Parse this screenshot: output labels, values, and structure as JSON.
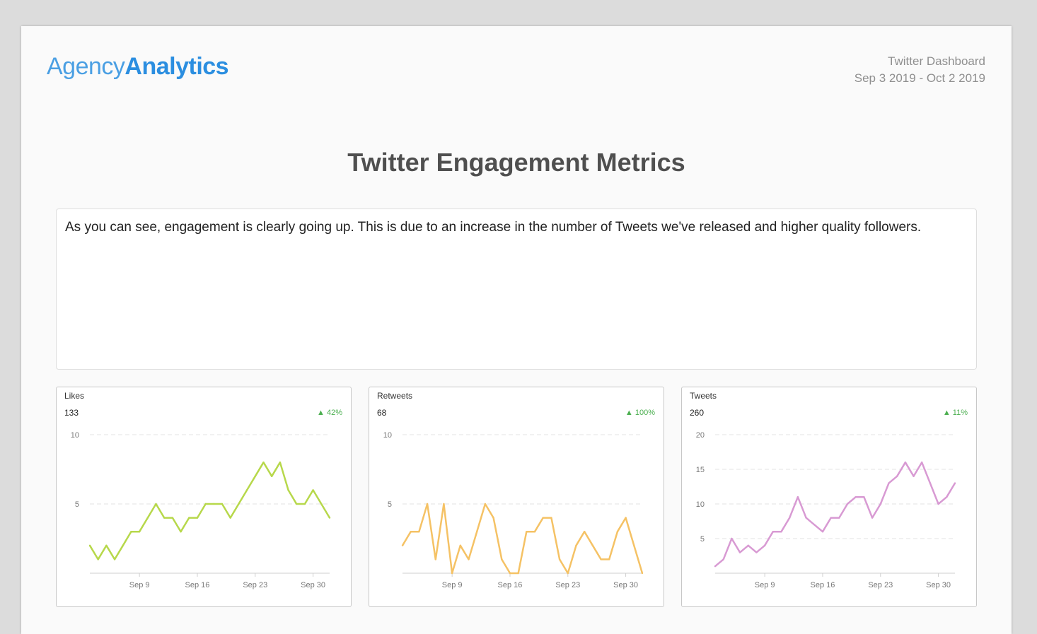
{
  "header": {
    "logo_part1": "Agency",
    "logo_part2": "Analytics",
    "dashboard_title": "Twitter Dashboard",
    "date_range": "Sep 3 2019 - Oct 2 2019"
  },
  "page_title": "Twitter Engagement Metrics",
  "notes_text": "As you can see, engagement is clearly going up. This is due to an increase in the number of Tweets we've released and higher quality followers.",
  "colors": {
    "likes": "#b7d84b",
    "retweets": "#f5c265",
    "tweets": "#d89ad3",
    "positive": "#4caf50"
  },
  "chart_data": [
    {
      "type": "line",
      "title": "Likes",
      "total": "133",
      "change": "42%",
      "change_icon": "triangle-up-icon",
      "x": [
        "Sep 3",
        "Sep 4",
        "Sep 5",
        "Sep 6",
        "Sep 7",
        "Sep 8",
        "Sep 9",
        "Sep 10",
        "Sep 11",
        "Sep 12",
        "Sep 13",
        "Sep 14",
        "Sep 15",
        "Sep 16",
        "Sep 17",
        "Sep 18",
        "Sep 19",
        "Sep 20",
        "Sep 21",
        "Sep 22",
        "Sep 23",
        "Sep 24",
        "Sep 25",
        "Sep 26",
        "Sep 27",
        "Sep 28",
        "Sep 29",
        "Sep 30",
        "Oct 1",
        "Oct 2"
      ],
      "x_ticks": [
        "Sep 9",
        "Sep 16",
        "Sep 23",
        "Sep 30"
      ],
      "values": [
        2,
        1,
        2,
        1,
        2,
        3,
        3,
        4,
        5,
        4,
        4,
        3,
        4,
        4,
        5,
        5,
        5,
        4,
        5,
        6,
        7,
        8,
        7,
        8,
        6,
        5,
        5,
        6,
        5,
        4
      ],
      "y_ticks": [
        5,
        10
      ],
      "ylim": [
        0,
        10
      ],
      "grid": true
    },
    {
      "type": "line",
      "title": "Retweets",
      "total": "68",
      "change": "100%",
      "change_icon": "triangle-up-icon",
      "x": [
        "Sep 3",
        "Sep 4",
        "Sep 5",
        "Sep 6",
        "Sep 7",
        "Sep 8",
        "Sep 9",
        "Sep 10",
        "Sep 11",
        "Sep 12",
        "Sep 13",
        "Sep 14",
        "Sep 15",
        "Sep 16",
        "Sep 17",
        "Sep 18",
        "Sep 19",
        "Sep 20",
        "Sep 21",
        "Sep 22",
        "Sep 23",
        "Sep 24",
        "Sep 25",
        "Sep 26",
        "Sep 27",
        "Sep 28",
        "Sep 29",
        "Sep 30",
        "Oct 1",
        "Oct 2"
      ],
      "x_ticks": [
        "Sep 9",
        "Sep 16",
        "Sep 23",
        "Sep 30"
      ],
      "values": [
        2,
        3,
        3,
        5,
        1,
        5,
        0,
        2,
        1,
        3,
        5,
        4,
        1,
        0,
        0,
        3,
        3,
        4,
        4,
        1,
        0,
        2,
        3,
        2,
        1,
        1,
        3,
        4,
        2,
        0
      ],
      "y_ticks": [
        5,
        10
      ],
      "ylim": [
        0,
        10
      ],
      "grid": true
    },
    {
      "type": "line",
      "title": "Tweets",
      "total": "260",
      "change": "11%",
      "change_icon": "triangle-up-icon",
      "x": [
        "Sep 3",
        "Sep 4",
        "Sep 5",
        "Sep 6",
        "Sep 7",
        "Sep 8",
        "Sep 9",
        "Sep 10",
        "Sep 11",
        "Sep 12",
        "Sep 13",
        "Sep 14",
        "Sep 15",
        "Sep 16",
        "Sep 17",
        "Sep 18",
        "Sep 19",
        "Sep 20",
        "Sep 21",
        "Sep 22",
        "Sep 23",
        "Sep 24",
        "Sep 25",
        "Sep 26",
        "Sep 27",
        "Sep 28",
        "Sep 29",
        "Sep 30",
        "Oct 1",
        "Oct 2"
      ],
      "x_ticks": [
        "Sep 9",
        "Sep 16",
        "Sep 23",
        "Sep 30"
      ],
      "values": [
        1,
        2,
        5,
        3,
        4,
        3,
        4,
        6,
        6,
        8,
        11,
        8,
        7,
        6,
        8,
        8,
        10,
        11,
        11,
        8,
        10,
        13,
        14,
        16,
        14,
        16,
        13,
        10,
        11,
        13
      ],
      "y_ticks": [
        5,
        10,
        15,
        20
      ],
      "ylim": [
        0,
        20
      ],
      "grid": true
    }
  ]
}
